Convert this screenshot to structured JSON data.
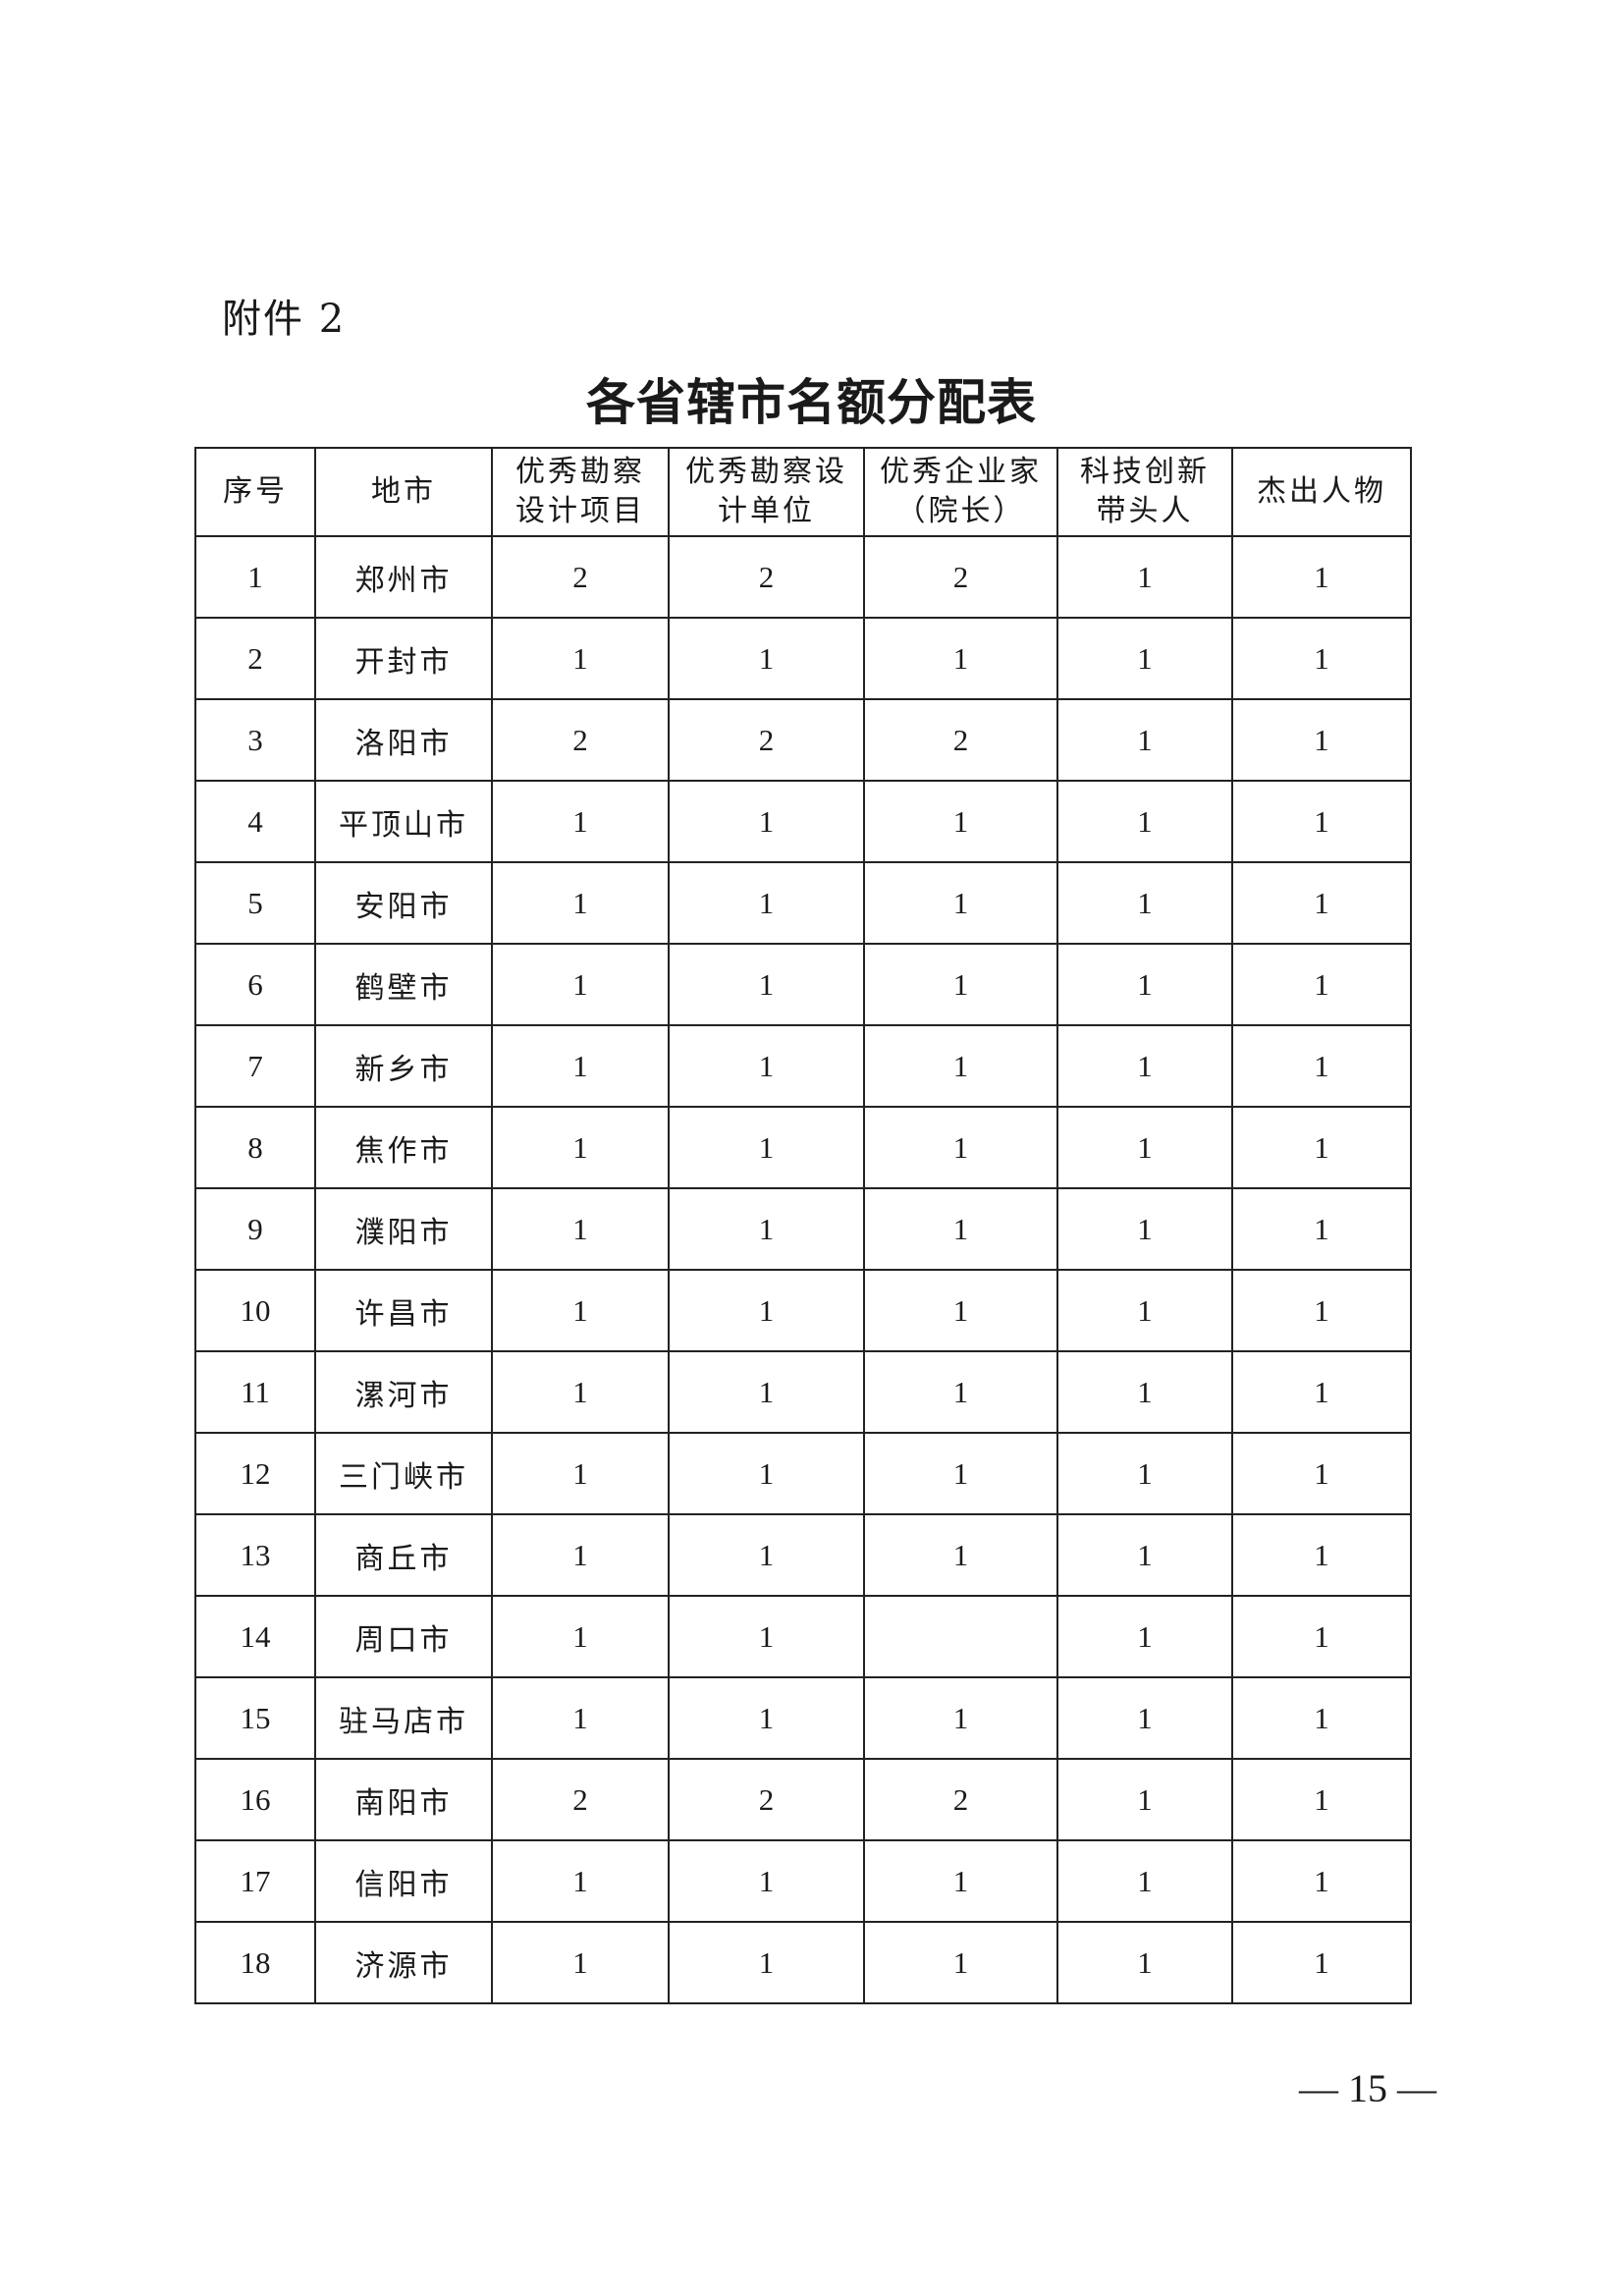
{
  "attachment_label": "附件 2",
  "title": "各省辖市名额分配表",
  "table": {
    "headers": [
      "序号",
      "地市",
      "优秀勘察\n设计项目",
      "优秀勘察设\n计单位",
      "优秀企业家\n（院长）",
      "科技创新\n带头人",
      "杰出人物"
    ],
    "rows": [
      [
        "1",
        "郑州市",
        "2",
        "2",
        "2",
        "1",
        "1"
      ],
      [
        "2",
        "开封市",
        "1",
        "1",
        "1",
        "1",
        "1"
      ],
      [
        "3",
        "洛阳市",
        "2",
        "2",
        "2",
        "1",
        "1"
      ],
      [
        "4",
        "平顶山市",
        "1",
        "1",
        "1",
        "1",
        "1"
      ],
      [
        "5",
        "安阳市",
        "1",
        "1",
        "1",
        "1",
        "1"
      ],
      [
        "6",
        "鹤壁市",
        "1",
        "1",
        "1",
        "1",
        "1"
      ],
      [
        "7",
        "新乡市",
        "1",
        "1",
        "1",
        "1",
        "1"
      ],
      [
        "8",
        "焦作市",
        "1",
        "1",
        "1",
        "1",
        "1"
      ],
      [
        "9",
        "濮阳市",
        "1",
        "1",
        "1",
        "1",
        "1"
      ],
      [
        "10",
        "许昌市",
        "1",
        "1",
        "1",
        "1",
        "1"
      ],
      [
        "11",
        "漯河市",
        "1",
        "1",
        "1",
        "1",
        "1"
      ],
      [
        "12",
        "三门峡市",
        "1",
        "1",
        "1",
        "1",
        "1"
      ],
      [
        "13",
        "商丘市",
        "1",
        "1",
        "1",
        "1",
        "1"
      ],
      [
        "14",
        "周口市",
        "1",
        "1",
        "",
        "1",
        "1"
      ],
      [
        "15",
        "驻马店市",
        "1",
        "1",
        "1",
        "1",
        "1"
      ],
      [
        "16",
        "南阳市",
        "2",
        "2",
        "2",
        "1",
        "1"
      ],
      [
        "17",
        "信阳市",
        "1",
        "1",
        "1",
        "1",
        "1"
      ],
      [
        "18",
        "济源市",
        "1",
        "1",
        "1",
        "1",
        "1"
      ]
    ]
  },
  "page_number": "— 15 —"
}
